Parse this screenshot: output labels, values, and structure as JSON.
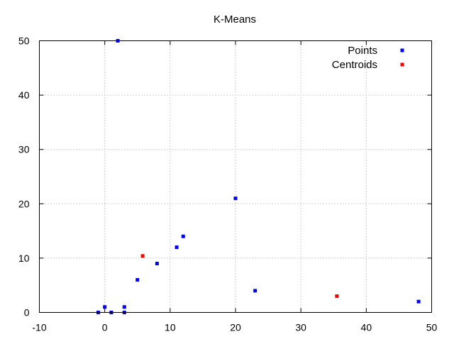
{
  "chart_data": {
    "type": "scatter",
    "title": "K-Means",
    "xlabel": "",
    "ylabel": "",
    "xlim": [
      -10,
      50
    ],
    "ylim": [
      0,
      50
    ],
    "x_ticks": [
      "-10",
      "0",
      "10",
      "20",
      "30",
      "40",
      "50"
    ],
    "y_ticks": [
      "0",
      "10",
      "20",
      "30",
      "40",
      "50"
    ],
    "grid": true,
    "legend_position": "top-right",
    "series": [
      {
        "name": "Points",
        "color": "#0000ff",
        "points": [
          {
            "x": -1,
            "y": 0
          },
          {
            "x": 0,
            "y": 1
          },
          {
            "x": 1,
            "y": 0
          },
          {
            "x": 3,
            "y": 0
          },
          {
            "x": 3,
            "y": 1
          },
          {
            "x": 5,
            "y": 6
          },
          {
            "x": 8,
            "y": 9
          },
          {
            "x": 11,
            "y": 12
          },
          {
            "x": 12,
            "y": 14
          },
          {
            "x": 20,
            "y": 21
          },
          {
            "x": 23,
            "y": 4
          },
          {
            "x": 2,
            "y": 50
          },
          {
            "x": 48,
            "y": 2
          }
        ]
      },
      {
        "name": "Centroids",
        "color": "#ff0000",
        "points": [
          {
            "x": 5.8,
            "y": 10.4
          },
          {
            "x": 35.5,
            "y": 3
          }
        ]
      }
    ]
  }
}
